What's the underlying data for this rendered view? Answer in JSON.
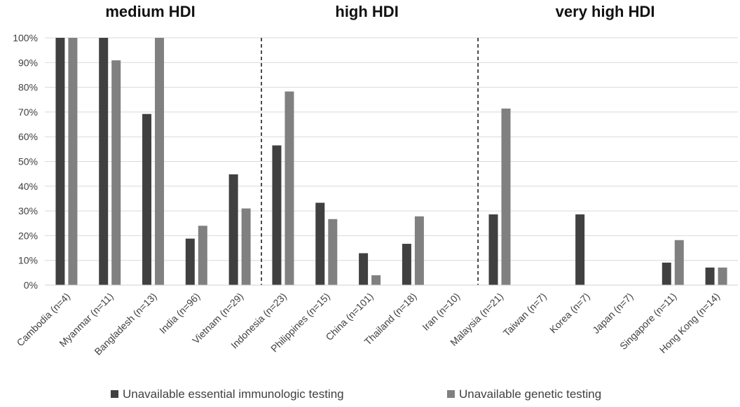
{
  "chart_data": {
    "type": "bar",
    "title": "",
    "xlabel": "",
    "ylabel": "",
    "ylim": [
      0,
      100
    ],
    "y_ticks": [
      "0%",
      "10%",
      "20%",
      "30%",
      "40%",
      "50%",
      "60%",
      "70%",
      "80%",
      "90%",
      "100%"
    ],
    "grid": true,
    "legend_position": "bottom",
    "groups": [
      {
        "label": "medium HDI",
        "start": 0,
        "end": 4
      },
      {
        "label": "high HDI",
        "start": 5,
        "end": 9
      },
      {
        "label": "very high HDI",
        "start": 10,
        "end": 15
      }
    ],
    "separators_after_index": [
      4,
      9
    ],
    "categories": [
      "Cambodia (n=4)",
      "Myanmar (n=11)",
      "Bangladesh (n=13)",
      "India (n=96)",
      "Vietnam (n=29)",
      "Indonesia (n=23)",
      "Philippines (n=15)",
      "China (n=101)",
      "Thailand (n=18)",
      "Iran (n=10)",
      "Malaysia (n=21)",
      "Taiwan (n=7)",
      "Korea (n=7)",
      "Japan (n=7)",
      "Singapore (n=11)",
      "Hong Kong (n=14)"
    ],
    "series": [
      {
        "name": "Unavailable essential immunologic testing",
        "color": "#404040",
        "values": [
          100,
          100,
          69.2,
          18.8,
          44.8,
          56.5,
          33.3,
          12.9,
          16.7,
          0,
          28.6,
          0,
          28.6,
          0,
          9.1,
          7.1
        ]
      },
      {
        "name": "Unavailable genetic testing",
        "color": "#808080",
        "values": [
          100,
          90.9,
          100,
          24,
          31,
          78.3,
          26.7,
          4,
          27.8,
          0,
          71.4,
          0,
          0,
          0,
          18.2,
          7.1
        ]
      }
    ]
  }
}
